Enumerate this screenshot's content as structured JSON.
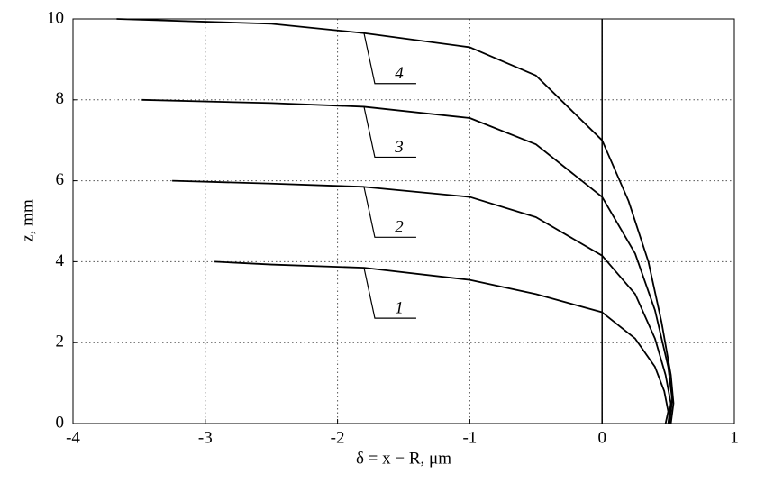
{
  "chart_data": {
    "type": "line",
    "xlabel": "δ = x − R, μm",
    "ylabel": "z, mm",
    "xlim": [
      -4,
      1
    ],
    "xticks": [
      -4,
      -3,
      -2,
      -1,
      0,
      1
    ],
    "ylim": [
      0,
      10
    ],
    "yticks": [
      0,
      2,
      4,
      6,
      8,
      10
    ],
    "grid": true,
    "color": "#000000",
    "series": [
      {
        "name": "1",
        "x": [
          -2.93,
          -2.5,
          -1.8,
          -1,
          -0.5,
          0,
          0.25,
          0.4,
          0.47,
          0.5,
          0.48
        ],
        "values": [
          4.0,
          3.93,
          3.85,
          3.55,
          3.2,
          2.75,
          2.1,
          1.4,
          0.8,
          0.3,
          0
        ]
      },
      {
        "name": "2",
        "x": [
          -3.25,
          -2.5,
          -1.8,
          -1,
          -0.5,
          0,
          0.25,
          0.4,
          0.48,
          0.52,
          0.5
        ],
        "values": [
          6.0,
          5.93,
          5.85,
          5.6,
          5.1,
          4.15,
          3.2,
          2.1,
          1.2,
          0.5,
          0
        ]
      },
      {
        "name": "3",
        "x": [
          -3.48,
          -2.5,
          -1.8,
          -1,
          -0.5,
          0,
          0.25,
          0.4,
          0.5,
          0.53,
          0.51
        ],
        "values": [
          8.0,
          7.92,
          7.83,
          7.55,
          6.9,
          5.6,
          4.2,
          2.8,
          1.4,
          0.6,
          0
        ]
      },
      {
        "name": "4",
        "x": [
          -3.67,
          -2.5,
          -1.8,
          -1,
          -0.5,
          0,
          0.2,
          0.35,
          0.45,
          0.52,
          0.54,
          0.52
        ],
        "values": [
          10.0,
          9.88,
          9.65,
          9.3,
          8.6,
          7.0,
          5.5,
          4.0,
          2.5,
          1.2,
          0.5,
          0
        ]
      }
    ]
  }
}
